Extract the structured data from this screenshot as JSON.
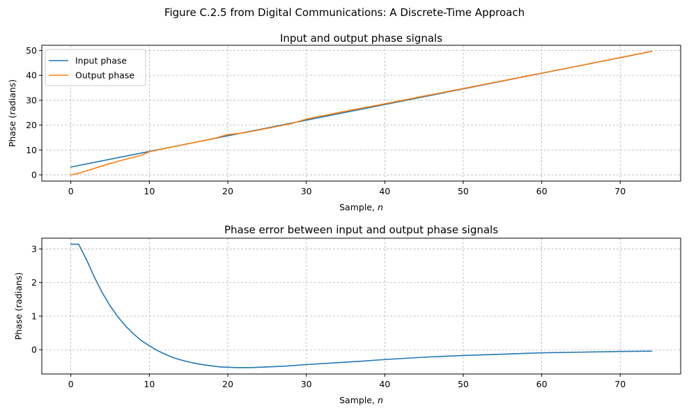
{
  "figure_title": "Figure C.2.5 from Digital Communications: A Discrete-Time Approach",
  "colors": {
    "input": "#1f77b4",
    "output": "#ff7f0e",
    "grid": "#b0b0b0"
  },
  "chart_data": [
    {
      "type": "line",
      "title": "Input and output phase signals",
      "xlabel": "Sample, n",
      "ylabel": "Phase (radians)",
      "xlim": [
        -3.7,
        77.7
      ],
      "ylim": [
        -2.5,
        52.1
      ],
      "xticks": [
        0,
        10,
        20,
        30,
        40,
        50,
        60,
        70
      ],
      "yticks": [
        0,
        10,
        20,
        30,
        40,
        50
      ],
      "grid": true,
      "legend_position": "top-left",
      "series": [
        {
          "name": "Input phase",
          "color": "#1f77b4",
          "x": [
            0,
            10,
            20,
            30,
            40,
            50,
            60,
            70,
            74
          ],
          "y": [
            3.14,
            9.42,
            15.71,
            21.99,
            28.27,
            34.56,
            40.84,
            47.12,
            49.64
          ]
        },
        {
          "name": "Output phase",
          "color": "#ff7f0e",
          "x": [
            0,
            1,
            2,
            3,
            4,
            5,
            6,
            7,
            8,
            9,
            10,
            12,
            14,
            16,
            18,
            20,
            22,
            24,
            26,
            28,
            30,
            35,
            40,
            45,
            50,
            55,
            60,
            65,
            70,
            74
          ],
          "y": [
            0.0,
            0.63,
            1.62,
            2.63,
            3.61,
            4.55,
            5.44,
            6.29,
            7.09,
            7.86,
            9.3,
            10.64,
            11.92,
            13.16,
            14.4,
            16.21,
            16.85,
            18.07,
            19.3,
            20.53,
            22.43,
            25.59,
            28.56,
            31.68,
            34.73,
            37.8,
            40.9,
            44.01,
            47.16,
            49.66
          ]
        }
      ]
    },
    {
      "type": "line",
      "title": "Phase error between input and output phase signals",
      "xlabel": "Sample, n",
      "ylabel": "Phase (radians)",
      "xlim": [
        -3.7,
        77.7
      ],
      "ylim": [
        -0.72,
        3.32
      ],
      "xticks": [
        0,
        10,
        20,
        30,
        40,
        50,
        60,
        70
      ],
      "yticks": [
        0,
        1,
        2,
        3
      ],
      "grid": true,
      "series": [
        {
          "name": "Phase error",
          "color": "#1f77b4",
          "x": [
            0,
            1,
            2,
            3,
            4,
            5,
            6,
            7,
            8,
            9,
            10,
            11,
            12,
            13,
            14,
            15,
            16,
            17,
            18,
            19,
            20,
            21,
            22,
            23,
            24,
            25,
            27,
            30,
            35,
            40,
            45,
            50,
            55,
            60,
            65,
            70,
            74
          ],
          "y": [
            3.14,
            3.14,
            2.68,
            2.16,
            1.7,
            1.31,
            0.98,
            0.7,
            0.47,
            0.27,
            0.12,
            -0.02,
            -0.13,
            -0.23,
            -0.3,
            -0.36,
            -0.41,
            -0.45,
            -0.48,
            -0.51,
            -0.52,
            -0.53,
            -0.53,
            -0.53,
            -0.52,
            -0.51,
            -0.49,
            -0.44,
            -0.37,
            -0.29,
            -0.22,
            -0.17,
            -0.13,
            -0.09,
            -0.07,
            -0.05,
            -0.04
          ]
        }
      ]
    }
  ]
}
